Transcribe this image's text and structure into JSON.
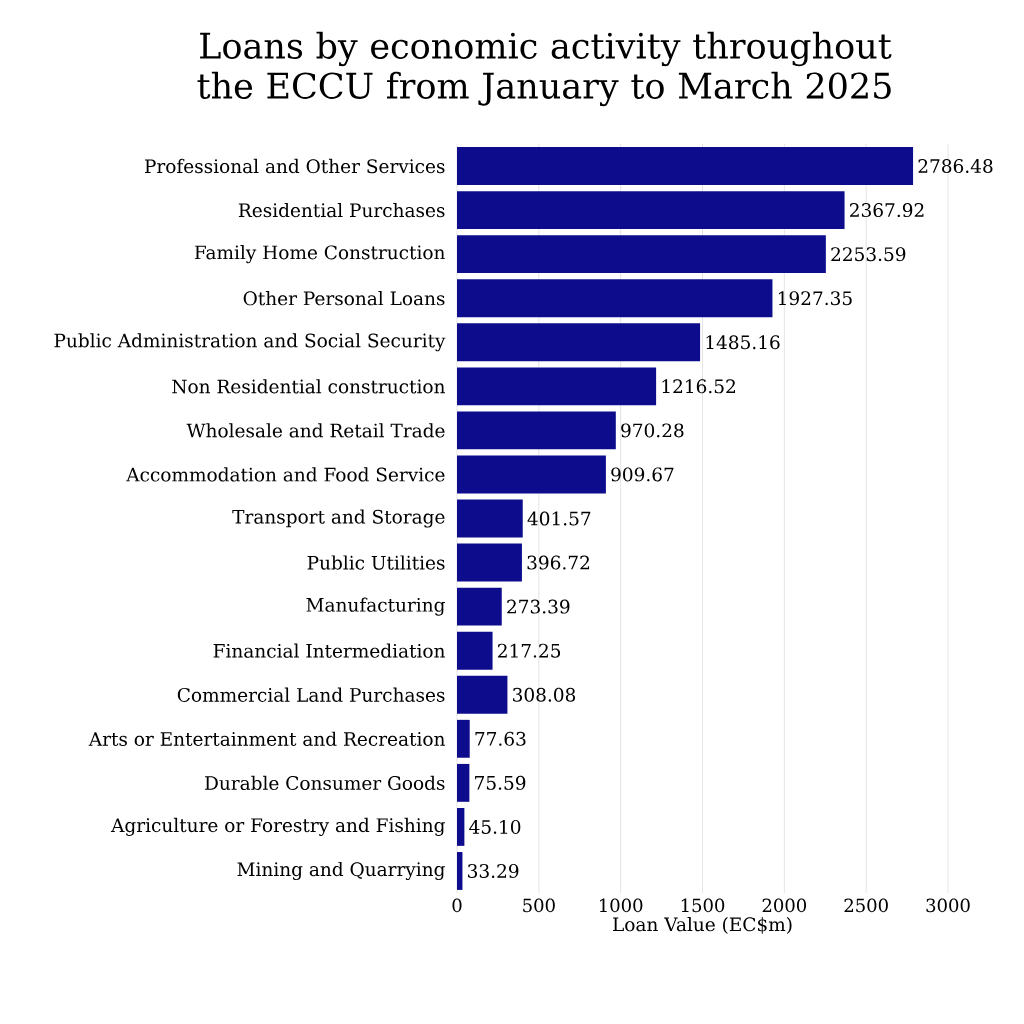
{
  "chart_data": {
    "type": "bar",
    "orientation": "horizontal",
    "title": "Loans by economic activity throughout the ECCU from January to March 2025",
    "xlabel": "Loan Value (EC$m)",
    "categories": [
      "Professional and Other Services",
      "Residential Purchases",
      "Family Home Construction",
      "Other Personal Loans",
      "Public Administration and Social Security",
      "Non Residential construction",
      "Wholesale and Retail Trade",
      "Accommodation and Food Service",
      "Transport and Storage",
      "Public Utilities",
      "Manufacturing",
      "Financial Intermediation",
      "Commercial Land Purchases",
      "Arts or Entertainment and Recreation",
      "Durable Consumer Goods",
      "Agriculture or Forestry and Fishing",
      "Mining and Quarrying"
    ],
    "values": [
      2786.48,
      2367.92,
      2253.59,
      1927.35,
      1485.16,
      1216.52,
      970.28,
      909.67,
      401.57,
      396.72,
      273.39,
      217.25,
      308.08,
      77.63,
      75.59,
      45.1,
      33.29
    ],
    "value_labels": [
      "2786.48",
      "2367.92",
      "2253.59",
      "1927.35",
      "1485.16",
      "1216.52",
      "970.28",
      "909.67",
      "401.57",
      "396.72",
      "273.39",
      "217.25",
      "308.08",
      "77.63",
      "75.59",
      "45.10",
      "33.29"
    ],
    "color": "#0c0c8c",
    "xlim": [
      0,
      3000
    ],
    "xticks": [
      0,
      500,
      1000,
      1500,
      2000,
      2500,
      3000
    ],
    "grid": "x"
  }
}
